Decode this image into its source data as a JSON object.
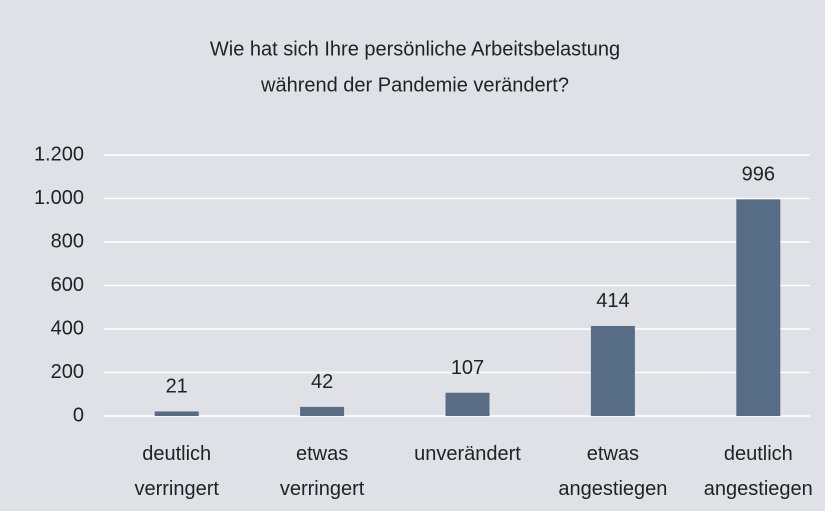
{
  "chart_data": {
    "type": "bar",
    "title": [
      "Wie hat sich Ihre persönliche Arbeitsbelastung",
      "während der Pandemie verändert?"
    ],
    "categories": [
      "deutlich verringert",
      "etwas verringert",
      "unverändert",
      "etwas angestiegen",
      "deutlich angestiegen"
    ],
    "values": [
      21,
      42,
      107,
      414,
      996
    ],
    "color": "#566d85",
    "ylim": [
      0,
      1200
    ],
    "yticks": [
      0,
      200,
      400,
      600,
      800,
      {
        "value": 1000,
        "label": "1.000"
      },
      {
        "value": 1200,
        "label": "1.200"
      }
    ],
    "grid": true
  }
}
